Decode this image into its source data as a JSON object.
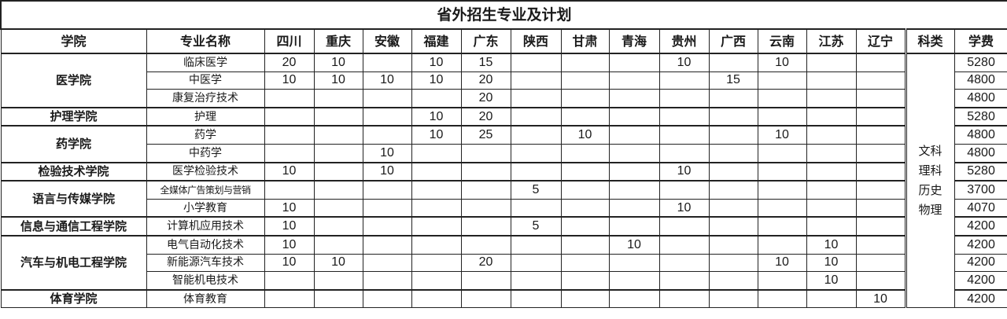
{
  "title": "省外招生专业及计划",
  "headers": {
    "college": "学院",
    "major": "专业名称",
    "provinces": [
      "四川",
      "重庆",
      "安徽",
      "福建",
      "广东",
      "陕西",
      "甘肃",
      "青海",
      "贵州",
      "广西",
      "云南",
      "江苏",
      "辽宁"
    ],
    "subject": "科类",
    "fee": "学费"
  },
  "subject_text": [
    "文科",
    "理科",
    "历史",
    "物理"
  ],
  "colleges": [
    {
      "name": "医学院",
      "majors": [
        {
          "name": "临床医学",
          "quotas": [
            "20",
            "10",
            "",
            "10",
            "15",
            "",
            "",
            "",
            "10",
            "",
            "10",
            "",
            ""
          ],
          "fee": "5280"
        },
        {
          "name": "中医学",
          "quotas": [
            "10",
            "10",
            "10",
            "10",
            "20",
            "",
            "",
            "",
            "",
            "15",
            "",
            "",
            ""
          ],
          "fee": "4800"
        },
        {
          "name": "康复治疗技术",
          "quotas": [
            "",
            "",
            "",
            "",
            "20",
            "",
            "",
            "",
            "",
            "",
            "",
            "",
            ""
          ],
          "fee": "4800"
        }
      ]
    },
    {
      "name": "护理学院",
      "majors": [
        {
          "name": "护理",
          "quotas": [
            "",
            "",
            "",
            "10",
            "20",
            "",
            "",
            "",
            "",
            "",
            "",
            "",
            ""
          ],
          "fee": "5280"
        }
      ]
    },
    {
      "name": "药学院",
      "majors": [
        {
          "name": "药学",
          "quotas": [
            "",
            "",
            "",
            "10",
            "25",
            "",
            "10",
            "",
            "",
            "",
            "10",
            "",
            ""
          ],
          "fee": "4800"
        },
        {
          "name": "中药学",
          "quotas": [
            "",
            "",
            "10",
            "",
            "",
            "",
            "",
            "",
            "",
            "",
            "",
            "",
            ""
          ],
          "fee": "4800"
        }
      ]
    },
    {
      "name": "检验技术学院",
      "majors": [
        {
          "name": "医学检验技术",
          "quotas": [
            "10",
            "",
            "10",
            "",
            "",
            "",
            "",
            "",
            "10",
            "",
            "",
            "",
            ""
          ],
          "fee": "5280"
        }
      ]
    },
    {
      "name": "语言与传媒学院",
      "majors": [
        {
          "name": "全媒体广告策划与营销",
          "quotas": [
            "",
            "",
            "",
            "",
            "",
            "5",
            "",
            "",
            "",
            "",
            "",
            "",
            ""
          ],
          "fee": "3700"
        },
        {
          "name": "小学教育",
          "quotas": [
            "10",
            "",
            "",
            "",
            "",
            "",
            "",
            "",
            "10",
            "",
            "",
            "",
            ""
          ],
          "fee": "4070"
        }
      ]
    },
    {
      "name": "信息与通信工程学院",
      "majors": [
        {
          "name": "计算机应用技术",
          "quotas": [
            "10",
            "",
            "",
            "",
            "",
            "5",
            "",
            "",
            "",
            "",
            "",
            "",
            ""
          ],
          "fee": "4200"
        }
      ]
    },
    {
      "name": "汽车与机电工程学院",
      "majors": [
        {
          "name": "电气自动化技术",
          "quotas": [
            "10",
            "",
            "",
            "",
            "",
            "",
            "",
            "10",
            "",
            "",
            "",
            "10",
            ""
          ],
          "fee": "4200"
        },
        {
          "name": "新能源汽车技术",
          "quotas": [
            "10",
            "10",
            "",
            "",
            "20",
            "",
            "",
            "",
            "",
            "",
            "10",
            "10",
            ""
          ],
          "fee": "4200"
        },
        {
          "name": "智能机电技术",
          "quotas": [
            "",
            "",
            "",
            "",
            "",
            "",
            "",
            "",
            "",
            "",
            "",
            "10",
            ""
          ],
          "fee": "4200"
        }
      ]
    },
    {
      "name": "体育学院",
      "majors": [
        {
          "name": "体育教育",
          "quotas": [
            "",
            "",
            "",
            "",
            "",
            "",
            "",
            "",
            "",
            "",
            "",
            "",
            "10"
          ],
          "fee": "4200"
        }
      ]
    }
  ]
}
